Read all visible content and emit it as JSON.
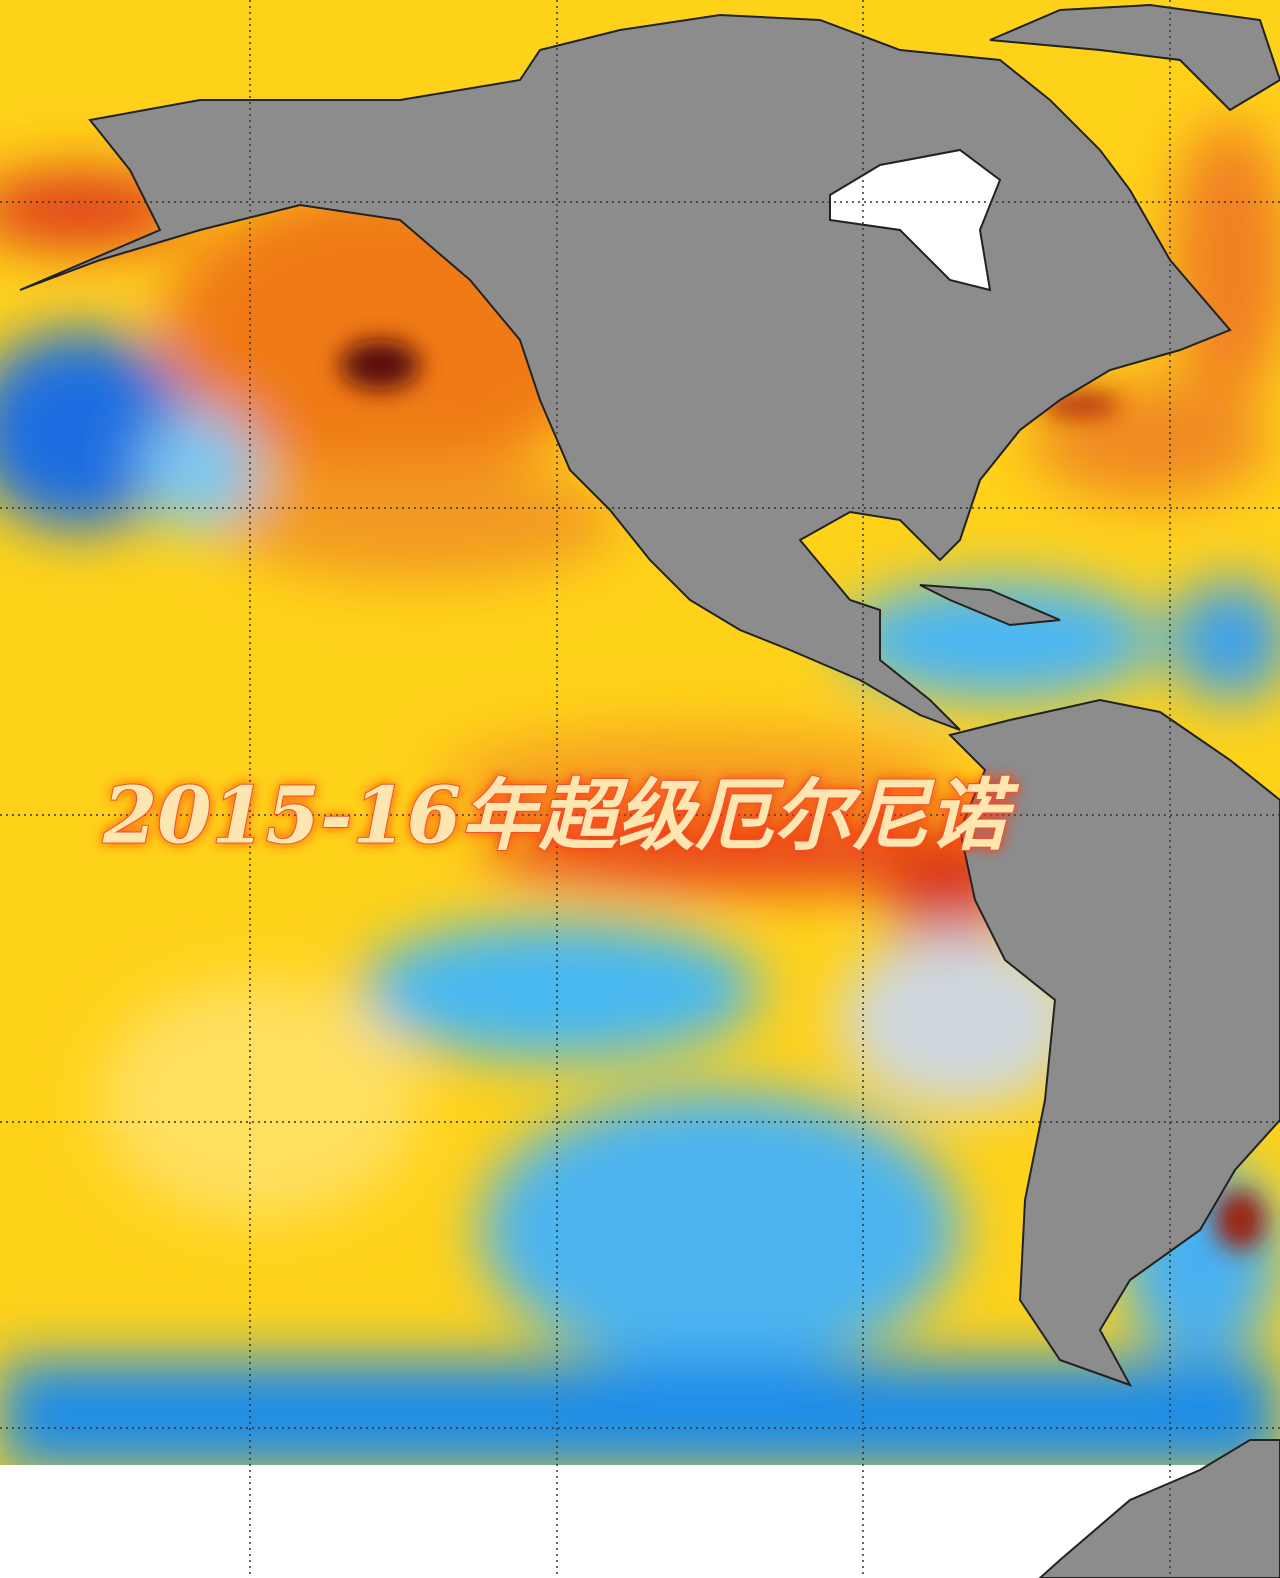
{
  "title": "2015-16年超级厄尔尼诺"
}
